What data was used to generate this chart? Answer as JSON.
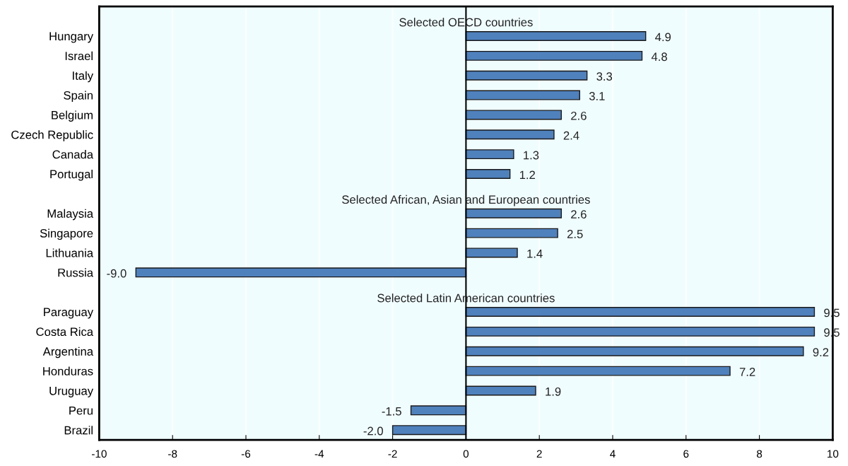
{
  "chart_data": {
    "type": "bar",
    "orientation": "horizontal",
    "categories": [
      null,
      "Hungary",
      "Israel",
      "Italy",
      "Spain",
      "Belgium",
      "Czech Republic",
      "Canada",
      "Portugal",
      null,
      "Malaysia",
      "Singapore",
      "Lithuania",
      "Russia",
      null,
      "Paraguay",
      "Costa Rica",
      "Argentina",
      "Honduras",
      "Uruguay",
      "Peru",
      "Brazil"
    ],
    "values": [
      null,
      4.9,
      4.8,
      3.3,
      3.1,
      2.6,
      2.4,
      1.3,
      1.2,
      null,
      2.6,
      2.5,
      1.4,
      -9.0,
      null,
      9.5,
      9.5,
      9.2,
      7.2,
      1.9,
      -1.5,
      -2.0
    ],
    "value_labels": [
      null,
      "4.9",
      "4.8",
      "3.3",
      "3.1",
      "2.6",
      "2.4",
      "1.3",
      "1.2",
      null,
      "2.6",
      "2.5",
      "1.4",
      "-9.0",
      null,
      "9.5",
      "9.5",
      "9.2",
      "7.2",
      "1.9",
      "-1.5",
      "-2.0"
    ],
    "color": "#4f81bd",
    "xlim": [
      -10,
      10
    ],
    "xticks": [
      -10,
      -8,
      -6,
      -4,
      -2,
      0,
      2,
      4,
      6,
      8,
      10
    ],
    "grid": "x",
    "annotations": [
      "Selected OECD countries",
      "Selected African, Asian and European countries",
      "Selected Latin American countries"
    ]
  }
}
